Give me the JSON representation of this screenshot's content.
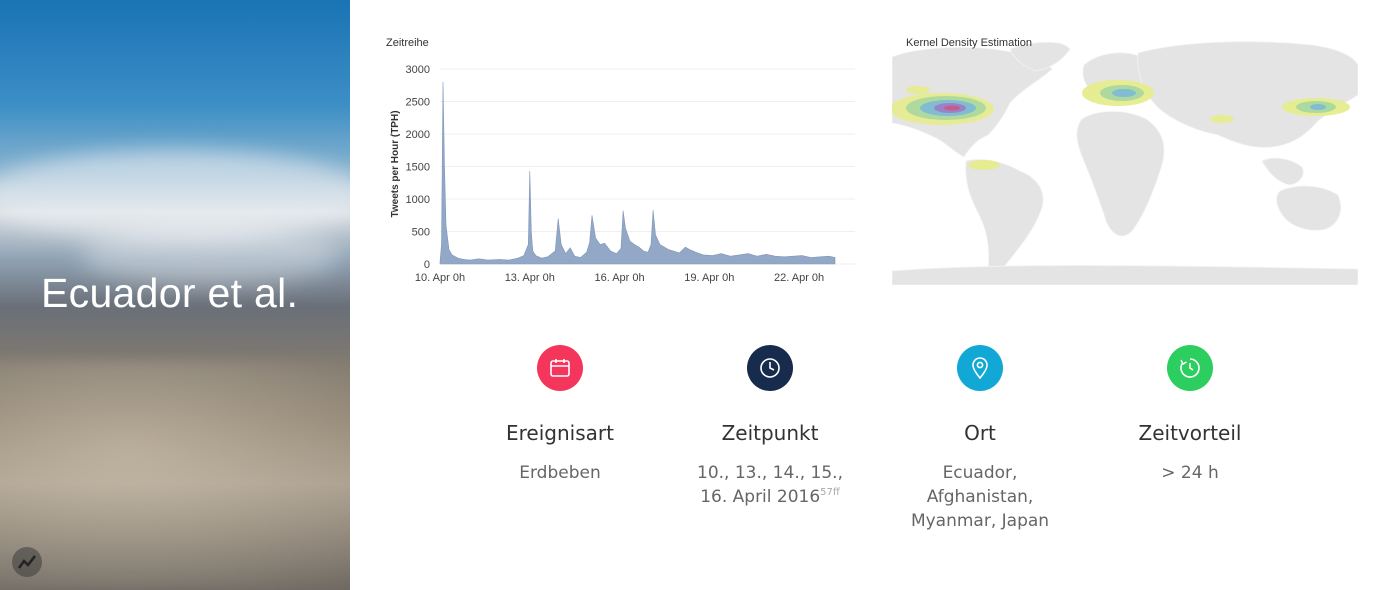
{
  "hero": {
    "title": "Ecuador et al."
  },
  "timeseries": {
    "title": "Zeitreihe",
    "chart_data": {
      "type": "area",
      "title": "Zeitreihe",
      "ylabel": "Tweets per Hour (TPH)",
      "xlabel": "",
      "ylim": [
        0,
        3000
      ],
      "yticks": [
        "0",
        "500",
        "1000",
        "1500",
        "2000",
        "2500",
        "3000"
      ],
      "xticks": [
        "10. Apr 0h",
        "13. Apr 0h",
        "16. Apr 0h",
        "19. Apr 0h",
        "22. Apr 0h"
      ],
      "xtick_days": [
        10,
        13,
        16,
        19,
        22
      ],
      "x_range_days": [
        10,
        23.2
      ],
      "color": "#93a8c6",
      "series": [
        {
          "x": [
            10.0,
            10.05,
            10.1,
            10.15,
            10.2,
            10.3,
            10.4,
            10.6,
            10.8,
            11.0,
            11.3,
            11.6,
            12.0,
            12.3,
            12.6,
            12.8,
            12.95,
            13.0,
            13.05,
            13.1,
            13.2,
            13.4,
            13.6,
            13.85,
            13.95,
            14.05,
            14.2,
            14.35,
            14.5,
            14.7,
            14.9,
            15.0,
            15.08,
            15.2,
            15.35,
            15.5,
            15.7,
            15.9,
            16.05,
            16.12,
            16.2,
            16.35,
            16.5,
            16.65,
            16.8,
            16.95,
            17.05,
            17.12,
            17.2,
            17.35,
            17.5,
            17.65,
            17.8,
            18.0,
            18.2,
            18.35,
            18.55,
            18.8,
            19.1,
            19.4,
            19.7,
            20.0,
            20.3,
            20.6,
            20.9,
            21.2,
            21.5,
            21.8,
            22.1,
            22.4,
            22.7,
            23.0,
            23.2
          ],
          "values": [
            30,
            300,
            2800,
            1500,
            600,
            220,
            140,
            90,
            70,
            60,
            80,
            60,
            70,
            60,
            90,
            130,
            300,
            1430,
            500,
            200,
            130,
            90,
            110,
            200,
            700,
            300,
            160,
            250,
            120,
            100,
            180,
            330,
            750,
            400,
            300,
            320,
            200,
            160,
            240,
            820,
            550,
            350,
            300,
            260,
            200,
            180,
            300,
            830,
            450,
            300,
            260,
            220,
            200,
            170,
            260,
            220,
            180,
            140,
            130,
            160,
            120,
            140,
            160,
            120,
            150,
            120,
            110,
            120,
            130,
            100,
            110,
            120,
            100
          ]
        }
      ]
    }
  },
  "map": {
    "title": "Kernel Density Estimation",
    "hotspots": [
      "North America (west)",
      "Central Europe",
      "Japan",
      "Ecuador",
      "Afghanistan"
    ]
  },
  "cards": [
    {
      "icon": "calendar-icon",
      "color": "#f5365c",
      "label": "Ereignisart",
      "lines": [
        "Erdbeben"
      ]
    },
    {
      "icon": "clock-icon",
      "color": "#172b4d",
      "label": "Zeitpunkt",
      "lines": [
        "10., 13., 14., 15.,",
        "16. April 2016"
      ],
      "footnote": "57ff"
    },
    {
      "icon": "location-pin-icon",
      "color": "#11a8d6",
      "label": "Ort",
      "lines": [
        "Ecuador,",
        "Afghanistan,",
        "Myanmar, Japan"
      ]
    },
    {
      "icon": "timer-icon",
      "color": "#2dce60",
      "label": "Zeitvorteil",
      "lines": [
        "> 24 h"
      ]
    }
  ]
}
